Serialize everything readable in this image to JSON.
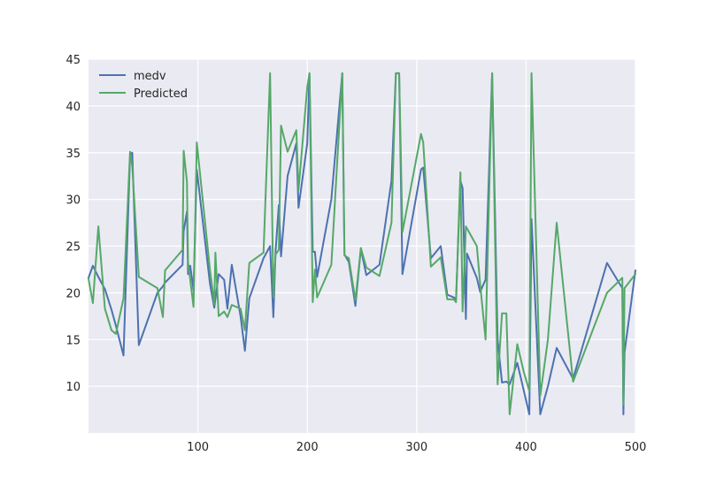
{
  "chart_data": {
    "type": "line",
    "title": "",
    "xlabel": "",
    "ylabel": "",
    "xlim": [
      0,
      500
    ],
    "ylim": [
      5,
      45
    ],
    "xticks": [
      100,
      200,
      300,
      400,
      500
    ],
    "yticks": [
      10,
      15,
      20,
      25,
      30,
      35,
      40,
      45
    ],
    "grid": true,
    "legend_position": "upper-left",
    "colors": {
      "medv": "#4c72b0",
      "predicted": "#55a868",
      "background": "#eaeaf2",
      "grid": "#ffffff"
    },
    "series": [
      {
        "name": "medv",
        "color": "#4c72b0",
        "points": [
          [
            0,
            21.6
          ],
          [
            4,
            22.9
          ],
          [
            9,
            21.7
          ],
          [
            15,
            20.4
          ],
          [
            21,
            18.2
          ],
          [
            25,
            16.5
          ],
          [
            32,
            13.3
          ],
          [
            38,
            34.7
          ],
          [
            40,
            35.0
          ],
          [
            46,
            14.4
          ],
          [
            63,
            20.0
          ],
          [
            68,
            20.7
          ],
          [
            70,
            21.1
          ],
          [
            86,
            23.0
          ],
          [
            87,
            26.6
          ],
          [
            90,
            28.7
          ],
          [
            91,
            22.0
          ],
          [
            93,
            22.9
          ],
          [
            96,
            20.3
          ],
          [
            99,
            33.2
          ],
          [
            111,
            21.0
          ],
          [
            115,
            18.4
          ],
          [
            119,
            22.0
          ],
          [
            124,
            21.4
          ],
          [
            127,
            18.3
          ],
          [
            131,
            23.0
          ],
          [
            139,
            17.5
          ],
          [
            143,
            13.8
          ],
          [
            147,
            19.4
          ],
          [
            160,
            23.7
          ],
          [
            166,
            25.0
          ],
          [
            169,
            17.4
          ],
          [
            171,
            24.4
          ],
          [
            174,
            29.4
          ],
          [
            176,
            23.9
          ],
          [
            182,
            32.5
          ],
          [
            190,
            36.0
          ],
          [
            192,
            29.1
          ],
          [
            200,
            36.0
          ],
          [
            202,
            43.5
          ],
          [
            205,
            24.4
          ],
          [
            207,
            24.4
          ],
          [
            209,
            21.7
          ],
          [
            222,
            30.0
          ],
          [
            232,
            43.5
          ],
          [
            234,
            24.1
          ],
          [
            238,
            23.3
          ],
          [
            244,
            18.6
          ],
          [
            249,
            24.7
          ],
          [
            254,
            21.9
          ],
          [
            266,
            23.0
          ],
          [
            277,
            32.0
          ],
          [
            281,
            43.5
          ],
          [
            284,
            43.5
          ],
          [
            287,
            22.0
          ],
          [
            304,
            33.2
          ],
          [
            306,
            33.4
          ],
          [
            313,
            23.7
          ],
          [
            322,
            25.0
          ],
          [
            328,
            19.8
          ],
          [
            334,
            19.5
          ],
          [
            336,
            19.3
          ],
          [
            340,
            32.0
          ],
          [
            342,
            31.2
          ],
          [
            345,
            17.2
          ],
          [
            346,
            24.2
          ],
          [
            355,
            21.6
          ],
          [
            358,
            20.1
          ],
          [
            363,
            21.4
          ],
          [
            369,
            43.5
          ],
          [
            374,
            15.0
          ],
          [
            378,
            10.4
          ],
          [
            382,
            10.5
          ],
          [
            385,
            10.2
          ],
          [
            392,
            12.5
          ],
          [
            398,
            9.5
          ],
          [
            403,
            7.0
          ],
          [
            405,
            27.9
          ],
          [
            413,
            7.0
          ],
          [
            420,
            10.0
          ],
          [
            428,
            14.1
          ],
          [
            443,
            10.8
          ],
          [
            474,
            23.2
          ],
          [
            488,
            20.5
          ],
          [
            489,
            7.0
          ],
          [
            490,
            13.6
          ],
          [
            500,
            22.4
          ]
        ]
      },
      {
        "name": "Predicted",
        "color": "#55a868",
        "points": [
          [
            0,
            21.5
          ],
          [
            4,
            18.9
          ],
          [
            9,
            27.1
          ],
          [
            15,
            18.3
          ],
          [
            21,
            16.0
          ],
          [
            25,
            15.6
          ],
          [
            32,
            19.4
          ],
          [
            38,
            35.1
          ],
          [
            40,
            33.5
          ],
          [
            46,
            21.7
          ],
          [
            63,
            20.5
          ],
          [
            68,
            17.4
          ],
          [
            70,
            22.4
          ],
          [
            86,
            24.6
          ],
          [
            87,
            35.2
          ],
          [
            90,
            31.9
          ],
          [
            91,
            23.3
          ],
          [
            93,
            21.4
          ],
          [
            96,
            18.5
          ],
          [
            99,
            36.1
          ],
          [
            111,
            22.5
          ],
          [
            115,
            18.8
          ],
          [
            116,
            24.3
          ],
          [
            119,
            17.5
          ],
          [
            124,
            18.0
          ],
          [
            127,
            17.4
          ],
          [
            131,
            18.7
          ],
          [
            139,
            18.3
          ],
          [
            143,
            16.0
          ],
          [
            147,
            23.2
          ],
          [
            160,
            24.3
          ],
          [
            166,
            43.5
          ],
          [
            169,
            19.5
          ],
          [
            171,
            24.1
          ],
          [
            174,
            24.6
          ],
          [
            176,
            37.9
          ],
          [
            182,
            35.1
          ],
          [
            190,
            37.4
          ],
          [
            192,
            31.0
          ],
          [
            200,
            42.0
          ],
          [
            202,
            43.5
          ],
          [
            205,
            19.0
          ],
          [
            207,
            22.5
          ],
          [
            209,
            19.5
          ],
          [
            222,
            23.0
          ],
          [
            232,
            43.5
          ],
          [
            234,
            24.0
          ],
          [
            238,
            23.7
          ],
          [
            244,
            19.2
          ],
          [
            249,
            24.8
          ],
          [
            254,
            22.7
          ],
          [
            266,
            21.8
          ],
          [
            277,
            27.5
          ],
          [
            281,
            43.5
          ],
          [
            284,
            43.5
          ],
          [
            287,
            26.5
          ],
          [
            304,
            37.0
          ],
          [
            306,
            36.1
          ],
          [
            313,
            22.8
          ],
          [
            322,
            23.8
          ],
          [
            328,
            19.3
          ],
          [
            334,
            19.3
          ],
          [
            336,
            19.0
          ],
          [
            340,
            32.9
          ],
          [
            342,
            18.0
          ],
          [
            345,
            27.1
          ],
          [
            355,
            25.0
          ],
          [
            358,
            21.0
          ],
          [
            363,
            15.0
          ],
          [
            369,
            43.5
          ],
          [
            374,
            10.2
          ],
          [
            378,
            17.8
          ],
          [
            382,
            17.8
          ],
          [
            385,
            7.0
          ],
          [
            392,
            14.5
          ],
          [
            398,
            11.5
          ],
          [
            403,
            9.5
          ],
          [
            405,
            43.5
          ],
          [
            413,
            9.0
          ],
          [
            420,
            15.0
          ],
          [
            428,
            27.5
          ],
          [
            443,
            10.5
          ],
          [
            474,
            20.0
          ],
          [
            488,
            21.6
          ],
          [
            489,
            8.0
          ],
          [
            490,
            20.5
          ],
          [
            500,
            22.0
          ]
        ]
      }
    ]
  }
}
